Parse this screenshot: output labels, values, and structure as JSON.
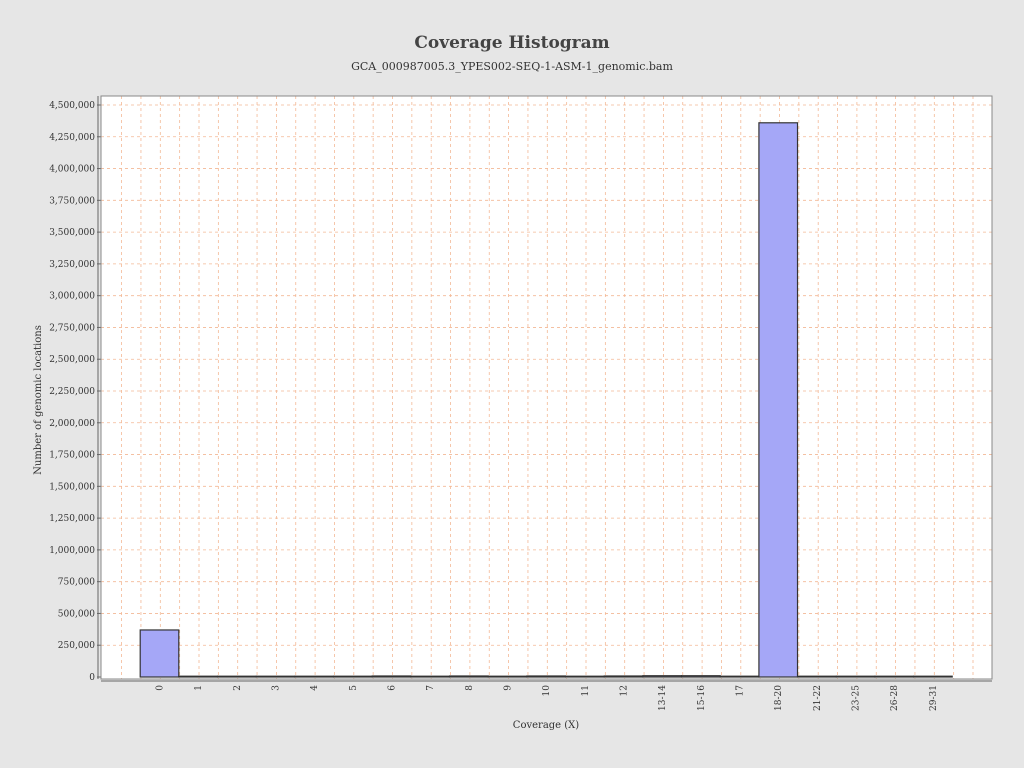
{
  "chart_data": {
    "type": "bar",
    "title": "Coverage Histogram",
    "subtitle": "GCA_000987005.3_YPES002-SEQ-1-ASM-1_genomic.bam",
    "xlabel": "Coverage (X)",
    "ylabel": "Number of genomic locations",
    "ylim": [
      0,
      4550000
    ],
    "yticks": [
      0,
      250000,
      500000,
      750000,
      1000000,
      1250000,
      1500000,
      1750000,
      2000000,
      2250000,
      2500000,
      2750000,
      3000000,
      3250000,
      3500000,
      3750000,
      4000000,
      4250000,
      4500000
    ],
    "ytick_labels": [
      "0",
      "250,000",
      "500,000",
      "750,000",
      "1,000,000",
      "1,250,000",
      "1,500,000",
      "1,750,000",
      "2,000,000",
      "2,250,000",
      "2,500,000",
      "2,750,000",
      "3,000,000",
      "3,250,000",
      "3,500,000",
      "3,750,000",
      "4,000,000",
      "4,250,000",
      "4,500,000"
    ],
    "categories": [
      "0",
      "1",
      "2",
      "3",
      "4",
      "5",
      "6",
      "7",
      "8",
      "9",
      "10",
      "11",
      "12",
      "13-14",
      "15-16",
      "17",
      "18-20",
      "21-22",
      "23-25",
      "26-28",
      "29-31"
    ],
    "values": [
      370000,
      0,
      0,
      0,
      0,
      0,
      8000,
      0,
      8000,
      0,
      8000,
      0,
      8000,
      10000,
      10000,
      0,
      4360000,
      0,
      0,
      0,
      0
    ],
    "grid": true,
    "colors": {
      "bar_fill": "#a5a7f7",
      "bar_stroke": "#333333",
      "grid": "#f3b895",
      "plot_bg": "#ffffff",
      "page_bg": "#e6e6e6"
    }
  }
}
